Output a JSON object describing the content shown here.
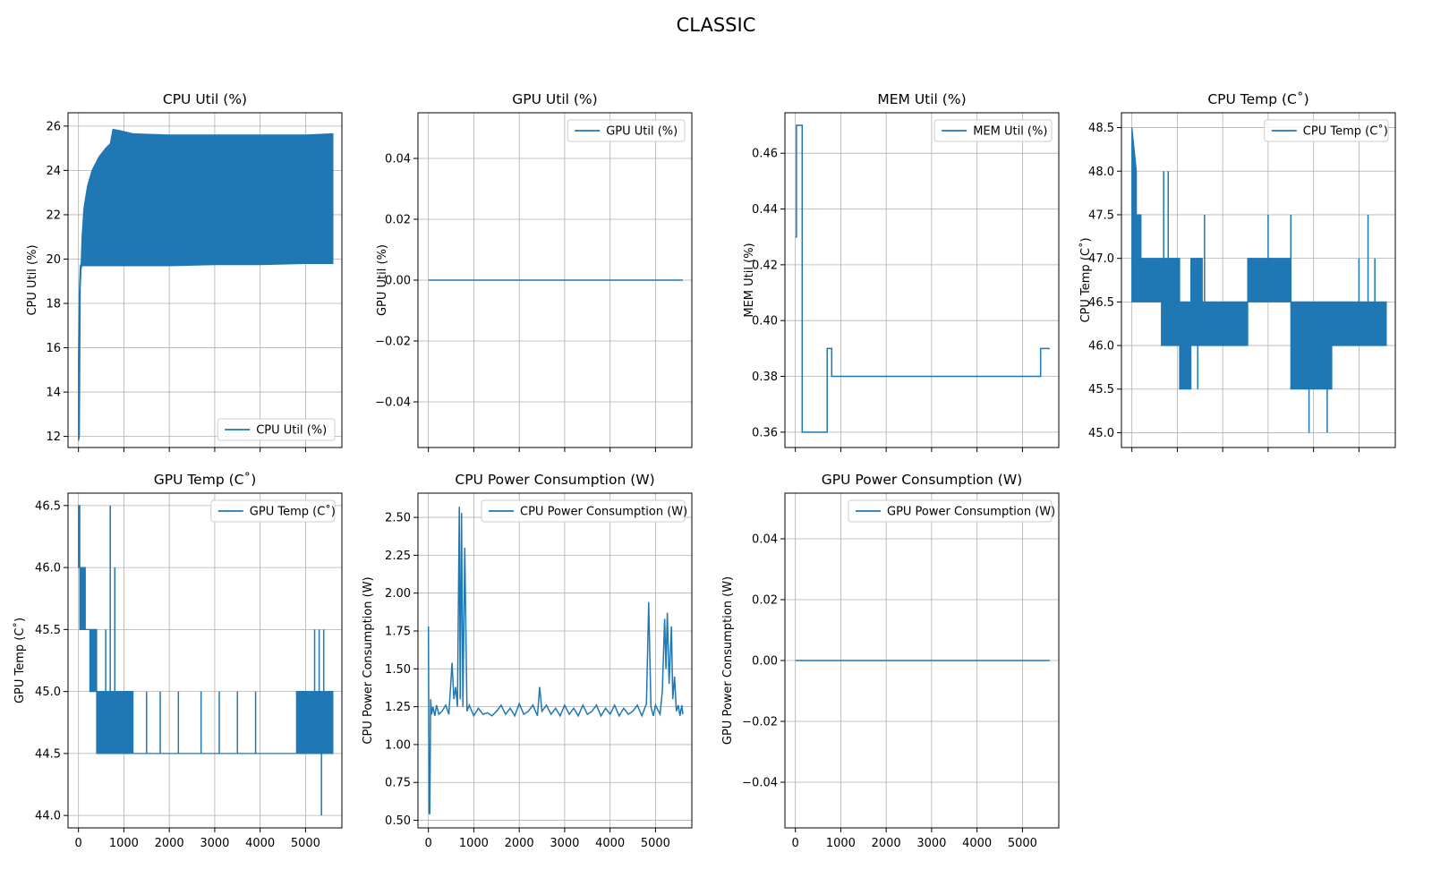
{
  "figure_title": "CLASSIC",
  "colors": {
    "series": "#1f77b4",
    "grid": "#b0b0b0",
    "axes": "#000000",
    "legend_border": "#cccccc"
  },
  "chart_data": [
    {
      "id": "cpu_util",
      "type": "line",
      "title": "CPU Util (%)",
      "ylabel": "CPU Util (%)",
      "legend": "CPU Util (%)",
      "legend_loc": "lower-right",
      "grid": true,
      "xlim": [
        -230,
        5800
      ],
      "ylim": [
        11.5,
        26.6
      ],
      "xticks": [
        0,
        1000,
        2000,
        3000,
        4000,
        5000
      ],
      "yticks": [
        12,
        14,
        16,
        18,
        20,
        22,
        24,
        26
      ],
      "ytick_labels": [
        "12",
        "14",
        "16",
        "18",
        "20",
        "22",
        "24",
        "26"
      ],
      "show_xtick_labels": false,
      "render": "band",
      "x": [
        0,
        20,
        40,
        60,
        80,
        120,
        200,
        300,
        450,
        600,
        700,
        760,
        900,
        1200,
        2000,
        3000,
        4000,
        5000,
        5600
      ],
      "upper": [
        15.6,
        18.6,
        19.7,
        19.8,
        21.0,
        22.3,
        23.3,
        24.0,
        24.6,
        25.0,
        25.2,
        25.85,
        25.8,
        25.65,
        25.6,
        25.6,
        25.6,
        25.6,
        25.65
      ],
      "lower": [
        11.8,
        12.0,
        18.8,
        19.6,
        19.7,
        19.7,
        19.7,
        19.7,
        19.7,
        19.7,
        19.7,
        19.7,
        19.7,
        19.7,
        19.7,
        19.75,
        19.75,
        19.8,
        19.8
      ]
    },
    {
      "id": "gpu_util",
      "type": "line",
      "title": "GPU Util (%)",
      "ylabel": "GPU Util (%)",
      "legend": "GPU Util (%)",
      "legend_loc": "top-right",
      "grid": true,
      "xlim": [
        -230,
        5800
      ],
      "ylim": [
        -0.055,
        0.055
      ],
      "xticks": [
        0,
        1000,
        2000,
        3000,
        4000,
        5000
      ],
      "yticks": [
        -0.04,
        -0.02,
        0.0,
        0.02,
        0.04
      ],
      "ytick_labels": [
        "−0.04",
        "−0.02",
        "0.00",
        "0.02",
        "0.04"
      ],
      "show_xtick_labels": false,
      "render": "step",
      "x": [
        0,
        5600
      ],
      "y": [
        0,
        0
      ]
    },
    {
      "id": "mem_util",
      "type": "line",
      "title": "MEM Util (%)",
      "ylabel": "MEM Util (%)",
      "legend": "MEM Util (%)",
      "legend_loc": "top-right",
      "grid": true,
      "xlim": [
        -230,
        5800
      ],
      "ylim": [
        0.3545,
        0.4745
      ],
      "xticks": [
        0,
        1000,
        2000,
        3000,
        4000,
        5000
      ],
      "yticks": [
        0.36,
        0.38,
        0.4,
        0.42,
        0.44,
        0.46
      ],
      "ytick_labels": [
        "0.36",
        "0.38",
        "0.40",
        "0.42",
        "0.44",
        "0.46"
      ],
      "show_xtick_labels": false,
      "render": "step",
      "x": [
        0,
        25,
        25,
        150,
        150,
        700,
        700,
        800,
        800,
        5400,
        5400,
        5600
      ],
      "y": [
        0.43,
        0.43,
        0.47,
        0.47,
        0.36,
        0.36,
        0.39,
        0.39,
        0.38,
        0.38,
        0.39,
        0.39
      ]
    },
    {
      "id": "cpu_temp",
      "type": "line",
      "title": "CPU Temp (C˚)",
      "ylabel": "CPU Temp (C˚)",
      "legend": "CPU Temp (C˚)",
      "legend_loc": "top-right",
      "grid": true,
      "xlim": [
        -230,
        5800
      ],
      "ylim": [
        44.83,
        48.67
      ],
      "xticks": [
        0,
        1000,
        2000,
        3000,
        4000,
        5000
      ],
      "yticks": [
        45.0,
        45.5,
        46.0,
        46.5,
        47.0,
        47.5,
        48.0,
        48.5
      ],
      "ytick_labels": [
        "45.0",
        "45.5",
        "46.0",
        "46.5",
        "47.0",
        "47.5",
        "48.0",
        "48.5"
      ],
      "show_xtick_labels": false,
      "render": "band",
      "x": [
        0,
        100,
        100,
        200,
        200,
        650,
        650,
        1050,
        1050,
        1300,
        1300,
        1550,
        1550,
        2550,
        2550,
        3500,
        3500,
        4400,
        4400,
        5600
      ],
      "upper": [
        48.5,
        48.0,
        47.5,
        47.5,
        47.0,
        47.0,
        47.0,
        47.0,
        46.5,
        46.5,
        47.0,
        47.0,
        46.5,
        46.5,
        47.0,
        47.0,
        46.5,
        46.5,
        46.5,
        46.5
      ],
      "lower": [
        46.5,
        46.5,
        46.5,
        46.5,
        46.5,
        46.5,
        46.0,
        46.0,
        45.5,
        45.5,
        46.0,
        46.0,
        46.0,
        46.0,
        46.5,
        46.5,
        45.5,
        45.5,
        46.0,
        46.0
      ],
      "spikes": [
        [
          700,
          46.5,
          48.0
        ],
        [
          800,
          46.5,
          48.0
        ],
        [
          1100,
          46.0,
          45.5
        ],
        [
          1450,
          46.5,
          45.5
        ],
        [
          1600,
          46.5,
          47.5
        ],
        [
          2200,
          46.0,
          46.5
        ],
        [
          3000,
          46.5,
          47.5
        ],
        [
          3500,
          46.5,
          47.5
        ],
        [
          3900,
          45.5,
          45.0
        ],
        [
          4300,
          45.5,
          45.0
        ],
        [
          5000,
          46.0,
          47.0
        ],
        [
          5200,
          46.5,
          47.5
        ],
        [
          5350,
          46.0,
          47.0
        ]
      ]
    },
    {
      "id": "gpu_temp",
      "type": "line",
      "title": "GPU Temp (C˚)",
      "ylabel": "GPU Temp (C˚)",
      "legend": "GPU Temp (C˚)",
      "legend_loc": "top-right",
      "grid": true,
      "xlim": [
        -230,
        5800
      ],
      "ylim": [
        43.9,
        46.6
      ],
      "xticks": [
        0,
        1000,
        2000,
        3000,
        4000,
        5000
      ],
      "yticks": [
        44.0,
        44.5,
        45.0,
        45.5,
        46.0,
        46.5
      ],
      "ytick_labels": [
        "44.0",
        "44.5",
        "45.0",
        "45.5",
        "46.0",
        "46.5"
      ],
      "show_xtick_labels": true,
      "render": "band",
      "x": [
        0,
        30,
        30,
        150,
        150,
        250,
        250,
        400,
        400,
        1200,
        1200,
        4800,
        4800,
        5600
      ],
      "upper": [
        46.5,
        46.5,
        46.0,
        46.0,
        45.5,
        45.5,
        45.5,
        45.5,
        45.0,
        45.0,
        44.5,
        44.5,
        45.0,
        45.0
      ],
      "lower": [
        46.0,
        46.0,
        45.5,
        45.5,
        45.5,
        45.5,
        45.0,
        45.0,
        44.5,
        44.5,
        44.5,
        44.5,
        44.5,
        44.5
      ],
      "spikes": [
        [
          600,
          44.5,
          45.5
        ],
        [
          700,
          44.5,
          46.5
        ],
        [
          800,
          44.5,
          46.0
        ],
        [
          1500,
          44.5,
          45.0
        ],
        [
          1800,
          44.5,
          45.0
        ],
        [
          2200,
          44.5,
          45.0
        ],
        [
          2700,
          44.5,
          45.0
        ],
        [
          3100,
          44.5,
          45.0
        ],
        [
          3500,
          44.5,
          45.0
        ],
        [
          3900,
          44.5,
          45.0
        ],
        [
          5200,
          44.5,
          45.5
        ],
        [
          5300,
          44.5,
          45.5
        ],
        [
          5350,
          44.5,
          44.0
        ],
        [
          5400,
          44.5,
          45.5
        ]
      ]
    },
    {
      "id": "cpu_power",
      "type": "line",
      "title": "CPU Power Consumption (W)",
      "ylabel": "CPU Power Consumption (W)",
      "legend": "CPU Power Consumption (W)",
      "legend_loc": "top-right",
      "grid": true,
      "xlim": [
        -230,
        5800
      ],
      "ylim": [
        0.45,
        2.66
      ],
      "xticks": [
        0,
        1000,
        2000,
        3000,
        4000,
        5000
      ],
      "yticks": [
        0.5,
        0.75,
        1.0,
        1.25,
        1.5,
        1.75,
        2.0,
        2.25,
        2.5
      ],
      "ytick_labels": [
        "0.50",
        "0.75",
        "1.00",
        "1.25",
        "1.50",
        "1.75",
        "2.00",
        "2.25",
        "2.50"
      ],
      "show_xtick_labels": true,
      "render": "step",
      "x": [
        0,
        15,
        30,
        50,
        70,
        100,
        140,
        180,
        230,
        300,
        380,
        450,
        520,
        560,
        600,
        640,
        680,
        700,
        730,
        760,
        800,
        850,
        900,
        1000,
        1100,
        1200,
        1300,
        1400,
        1500,
        1600,
        1700,
        1800,
        1900,
        2000,
        2100,
        2200,
        2300,
        2400,
        2450,
        2500,
        2600,
        2700,
        2800,
        2900,
        3000,
        3100,
        3200,
        3300,
        3400,
        3500,
        3600,
        3700,
        3800,
        3900,
        4000,
        4100,
        4200,
        4300,
        4400,
        4500,
        4600,
        4700,
        4800,
        4850,
        4900,
        4950,
        5000,
        5100,
        5150,
        5200,
        5230,
        5260,
        5300,
        5350,
        5380,
        5420,
        5460,
        5500,
        5540,
        5580,
        5600
      ],
      "y": [
        1.78,
        0.55,
        0.54,
        1.3,
        1.2,
        1.25,
        1.19,
        1.26,
        1.2,
        1.22,
        1.26,
        1.2,
        1.54,
        1.3,
        1.38,
        1.25,
        2.57,
        1.3,
        2.53,
        1.25,
        2.3,
        1.22,
        1.26,
        1.19,
        1.24,
        1.2,
        1.21,
        1.19,
        1.22,
        1.26,
        1.2,
        1.24,
        1.19,
        1.27,
        1.2,
        1.22,
        1.26,
        1.19,
        1.38,
        1.22,
        1.26,
        1.2,
        1.24,
        1.19,
        1.26,
        1.2,
        1.24,
        1.19,
        1.26,
        1.2,
        1.22,
        1.26,
        1.19,
        1.24,
        1.2,
        1.26,
        1.19,
        1.24,
        1.2,
        1.22,
        1.26,
        1.19,
        1.27,
        1.94,
        1.25,
        1.19,
        1.26,
        1.2,
        1.35,
        1.83,
        1.5,
        1.87,
        1.4,
        1.78,
        1.3,
        1.45,
        1.22,
        1.26,
        1.19,
        1.26,
        1.2
      ]
    },
    {
      "id": "gpu_power",
      "type": "line",
      "title": "GPU Power Consumption (W)",
      "ylabel": "GPU Power Consumption (W)",
      "legend": "GPU Power Consumption (W)",
      "legend_loc": "top-right",
      "grid": true,
      "xlim": [
        -230,
        5800
      ],
      "ylim": [
        -0.055,
        0.055
      ],
      "xticks": [
        0,
        1000,
        2000,
        3000,
        4000,
        5000
      ],
      "yticks": [
        -0.04,
        -0.02,
        0.0,
        0.02,
        0.04
      ],
      "ytick_labels": [
        "−0.04",
        "−0.02",
        "0.00",
        "0.02",
        "0.04"
      ],
      "show_xtick_labels": true,
      "render": "step",
      "x": [
        0,
        5600
      ],
      "y": [
        0,
        0
      ]
    }
  ]
}
